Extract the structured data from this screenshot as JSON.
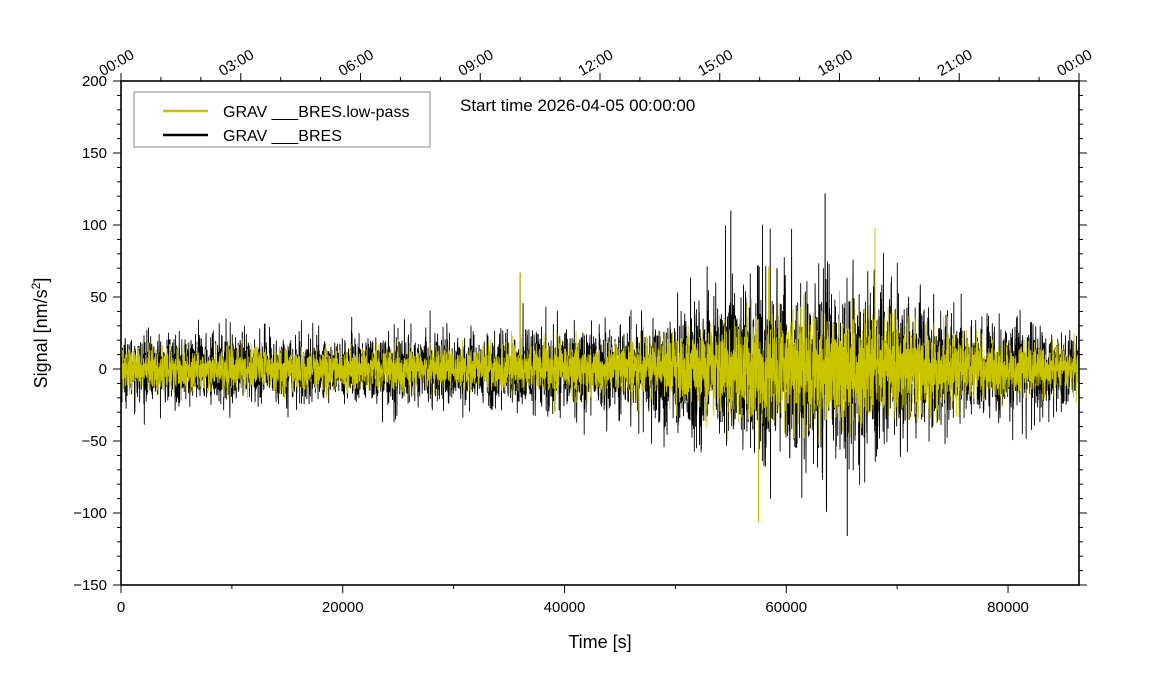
{
  "chart_data": {
    "type": "line",
    "title": "",
    "annotation": "Start time 2026-04-05 00:00:00",
    "xlabel": "Time [s]",
    "ylabel": "Signal [nm/s",
    "ylabel_sup": "2",
    "ylabel_suffix": "]",
    "xlim": [
      0,
      86400
    ],
    "ylim": [
      -150,
      200
    ],
    "grid": false,
    "legend_position": "top-left",
    "x_ticks": [
      0,
      20000,
      40000,
      60000,
      80000
    ],
    "x_tick_labels": [
      "0",
      "20000",
      "40000",
      "60000",
      "80000"
    ],
    "y_ticks": [
      -150,
      -100,
      -50,
      0,
      50,
      100,
      150,
      200
    ],
    "y_tick_labels": [
      "−150",
      "−100",
      "−50",
      "0",
      "50",
      "100",
      "150",
      "200"
    ],
    "top_axis_ticks": [
      0,
      10800,
      21600,
      32400,
      43200,
      54000,
      64800,
      75600,
      86400
    ],
    "top_axis_labels": [
      "00:00",
      "03:00",
      "06:00",
      "09:00",
      "12:00",
      "15:00",
      "18:00",
      "21:00",
      "00:00"
    ],
    "series": [
      {
        "name": "GRAV ___BRES",
        "color": "#000000",
        "style": "noise",
        "envelope": {
          "x": [
            0,
            10000,
            20000,
            30000,
            36000,
            40000,
            45000,
            48000,
            52000,
            56000,
            60000,
            63500,
            66000,
            70000,
            74000,
            78000,
            82000,
            86400
          ],
          "amplitude": [
            24,
            26,
            25,
            27,
            28,
            30,
            33,
            38,
            52,
            62,
            68,
            70,
            68,
            60,
            45,
            34,
            30,
            28
          ]
        },
        "peaks": [
          {
            "x": 63500,
            "y": 122
          },
          {
            "x": 55000,
            "y": 110
          },
          {
            "x": 65500,
            "y": -116
          },
          {
            "x": 57500,
            "y": -106
          },
          {
            "x": 36000,
            "y": 67
          }
        ]
      },
      {
        "name": "GRAV ___BRES.low-pass",
        "color": "#c8c400",
        "style": "noise",
        "envelope": {
          "x": [
            0,
            10000,
            20000,
            30000,
            36000,
            40000,
            45000,
            48000,
            52000,
            56000,
            60000,
            63500,
            66000,
            70000,
            74000,
            78000,
            82000,
            86400
          ],
          "amplitude": [
            15,
            16,
            15,
            16,
            17,
            18,
            20,
            23,
            32,
            38,
            42,
            44,
            42,
            37,
            28,
            21,
            18,
            17
          ]
        },
        "peaks": [
          {
            "x": 36000,
            "y": 67
          },
          {
            "x": 68000,
            "y": 98
          },
          {
            "x": 57500,
            "y": -106
          }
        ]
      }
    ]
  }
}
